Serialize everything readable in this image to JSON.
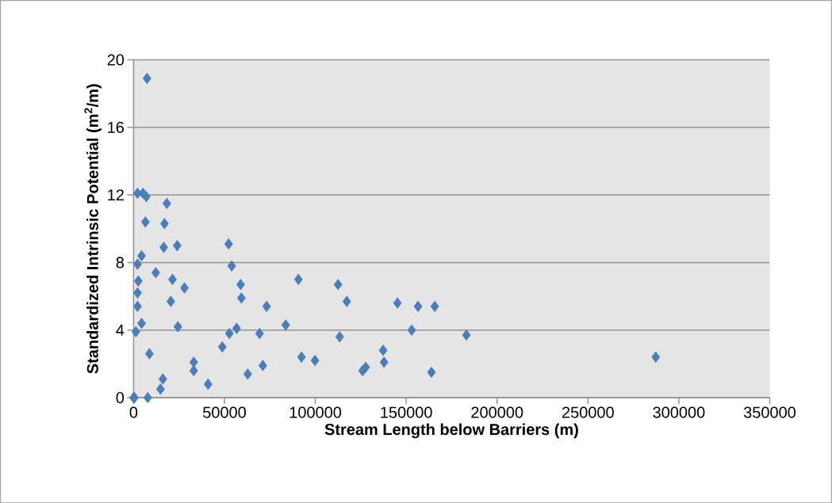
{
  "chart_data": {
    "type": "scatter",
    "xlabel": "Stream Length below Barriers (m)",
    "ylabel": "Standardized Intrinsic Potential (m$^{2}$/m)",
    "x": [
      0,
      500,
      7800,
      7400,
      2200,
      5200,
      7000,
      18300,
      6500,
      17000,
      16600,
      24000,
      52300,
      4400,
      2200,
      12200,
      21400,
      28000,
      2600,
      2200,
      2200,
      20500,
      54000,
      58900,
      59300,
      4400,
      1300,
      24400,
      8700,
      33100,
      33100,
      16100,
      14800,
      41000,
      52700,
      56700,
      48800,
      62800,
      69300,
      71100,
      73200,
      83700,
      90700,
      92400,
      99800,
      112500,
      113400,
      117300,
      126000,
      127700,
      137300,
      137800,
      145200,
      153000,
      156500,
      165700,
      163900,
      183100,
      287300
    ],
    "values": [
      0,
      0,
      0,
      18.9,
      12.1,
      12.1,
      11.9,
      11.5,
      10.4,
      10.3,
      8.9,
      9.0,
      9.1,
      8.4,
      7.9,
      7.4,
      7.0,
      6.5,
      6.9,
      6.2,
      5.4,
      5.7,
      7.8,
      6.7,
      5.9,
      4.4,
      3.9,
      4.2,
      2.6,
      2.1,
      1.6,
      1.1,
      0.5,
      0.8,
      3.8,
      4.1,
      3.0,
      1.4,
      3.8,
      1.9,
      5.4,
      4.3,
      7.0,
      2.4,
      2.2,
      6.7,
      3.6,
      5.7,
      1.6,
      1.8,
      2.8,
      2.1,
      5.6,
      4.0,
      5.4,
      5.4,
      1.5,
      3.7,
      2.4
    ],
    "color": "#4a7ebb",
    "marker": "diamond",
    "grid": "y",
    "xlim": [
      0,
      350000
    ],
    "xticks": [
      0,
      50000,
      100000,
      150000,
      200000,
      250000,
      300000,
      350000
    ],
    "ylim": [
      0,
      20
    ],
    "yticks": [
      0,
      4,
      8,
      12,
      16,
      20
    ]
  }
}
